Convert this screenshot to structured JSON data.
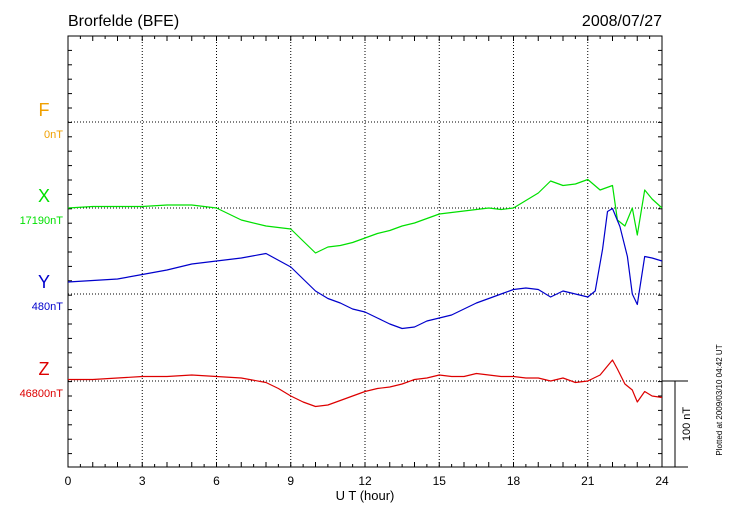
{
  "chart_data": {
    "type": "line",
    "title": "Brorfelde (BFE)",
    "date": "2008/07/27",
    "xlabel": "U T (hour)",
    "xlim": [
      0,
      24
    ],
    "x_ticks": [
      "0",
      "3",
      "6",
      "9",
      "12",
      "15",
      "18",
      "21",
      "24"
    ],
    "scale_label": "100 nT",
    "footer": "Plotted at 2009/03/10 04:42 UT",
    "colors": {
      "F": "#f0a000",
      "X": "#00e000",
      "Y": "#0000cc",
      "Z": "#dd0000"
    },
    "series": [
      {
        "name": "F",
        "baseline_label": "0nT",
        "color": "#f0a000",
        "x": [],
        "values": []
      },
      {
        "name": "X",
        "baseline_label": "17190nT",
        "color": "#00e000",
        "x": [
          0,
          1,
          2,
          3,
          4,
          5,
          6,
          7,
          8,
          9,
          9.5,
          10,
          10.5,
          11,
          11.5,
          12,
          12.5,
          13,
          13.5,
          14,
          14.5,
          15,
          15.5,
          16,
          16.5,
          17,
          17.5,
          18,
          18.5,
          19,
          19.5,
          20,
          20.5,
          21,
          21.5,
          22,
          22.2,
          22.5,
          22.8,
          23,
          23.3,
          23.6,
          24
        ],
        "values": [
          0,
          1,
          1,
          1,
          2,
          2,
          0,
          -8,
          -12,
          -14,
          -22,
          -30,
          -26,
          -25,
          -23,
          -20,
          -17,
          -15,
          -12,
          -10,
          -7,
          -4,
          -3,
          -2,
          -1,
          0,
          -1,
          0,
          5,
          10,
          18,
          15,
          16,
          19,
          12,
          15,
          -8,
          -12,
          0,
          -18,
          12,
          6,
          0
        ]
      },
      {
        "name": "Y",
        "baseline_label": "480nT",
        "color": "#0000cc",
        "x": [
          0,
          1,
          2,
          3,
          4,
          5,
          6,
          7,
          8,
          9,
          10,
          10.5,
          11,
          11.5,
          12,
          12.5,
          13,
          13.5,
          14,
          14.5,
          15,
          15.5,
          16,
          16.5,
          17,
          17.5,
          18,
          18.5,
          19,
          19.5,
          20,
          20.5,
          21,
          21.3,
          21.6,
          21.8,
          22,
          22.3,
          22.6,
          22.8,
          23,
          23.3,
          23.6,
          24
        ],
        "values": [
          8,
          9,
          10,
          13,
          16,
          20,
          22,
          24,
          27,
          18,
          2,
          -3,
          -6,
          -10,
          -12,
          -16,
          -20,
          -23,
          -22,
          -18,
          -16,
          -14,
          -10,
          -6,
          -3,
          0,
          3,
          4,
          3,
          -2,
          2,
          0,
          -2,
          2,
          30,
          55,
          57,
          45,
          25,
          0,
          -7,
          25,
          24,
          22
        ]
      },
      {
        "name": "Z",
        "baseline_label": "46800nT",
        "color": "#dd0000",
        "x": [
          0,
          1,
          2,
          3,
          4,
          5,
          6,
          7,
          8,
          8.5,
          9,
          9.5,
          10,
          10.5,
          11,
          11.5,
          12,
          12.5,
          13,
          13.5,
          14,
          14.5,
          15,
          15.5,
          16,
          16.5,
          17,
          17.5,
          18,
          18.5,
          19,
          19.5,
          20,
          20.5,
          21,
          21.5,
          21.8,
          22,
          22.2,
          22.5,
          22.8,
          23,
          23.3,
          23.6,
          24
        ],
        "values": [
          1,
          1,
          2,
          3,
          3,
          4,
          3,
          2,
          -1,
          -5,
          -10,
          -14,
          -17,
          -16,
          -13,
          -10,
          -7,
          -5,
          -4,
          -2,
          1,
          2,
          4,
          3,
          3,
          5,
          4,
          3,
          3,
          2,
          2,
          0,
          2,
          -1,
          0,
          4,
          10,
          14,
          8,
          -2,
          -6,
          -14,
          -7,
          -10,
          -11
        ]
      }
    ]
  }
}
